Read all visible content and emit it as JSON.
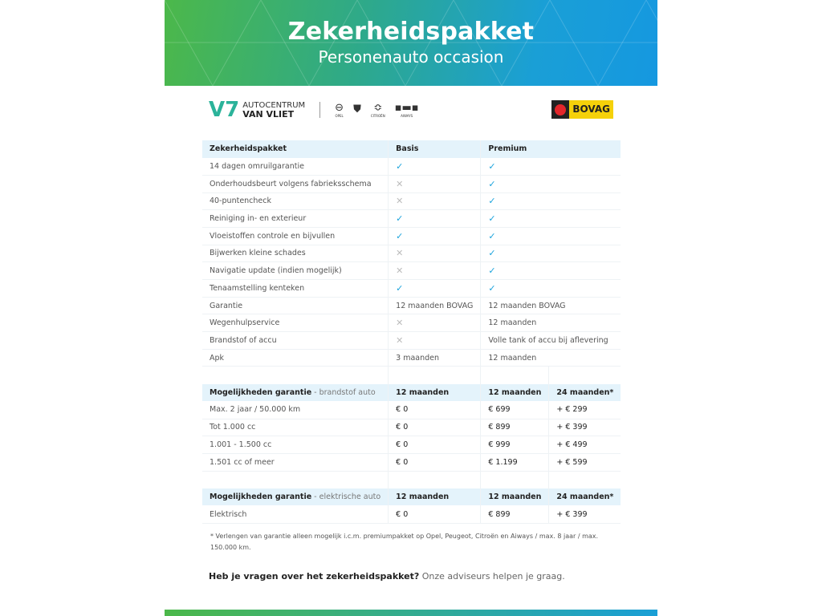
{
  "header": {
    "title": "Zekerheidspakket",
    "subtitle": "Personenauto occasion"
  },
  "logos": {
    "dealer_line1": "AUTOCENTRUM",
    "dealer_line2": "VAN VLIET",
    "brands": [
      "OPEL",
      "PEUGEOT",
      "CITROËN",
      "AIWAYS"
    ],
    "bovag": "BOVAG"
  },
  "table1": {
    "headers": [
      "Zekerheidspakket",
      "Basis",
      "Premium"
    ],
    "rows": [
      [
        "14 dagen omruilgarantie",
        "check",
        "check"
      ],
      [
        "Onderhoudsbeurt volgens fabrieksschema",
        "cross",
        "check"
      ],
      [
        "40-puntencheck",
        "cross",
        "check"
      ],
      [
        "Reiniging in- en exterieur",
        "check",
        "check"
      ],
      [
        "Vloeistoffen controle en bijvullen",
        "check",
        "check"
      ],
      [
        "Bijwerken kleine schades",
        "cross",
        "check"
      ],
      [
        "Navigatie update (indien mogelijk)",
        "cross",
        "check"
      ],
      [
        "Tenaamstelling kenteken",
        "check",
        "check"
      ],
      [
        "Garantie",
        "12 maanden BOVAG",
        "12 maanden BOVAG"
      ],
      [
        "Wegenhulpservice",
        "cross",
        "12 maanden"
      ],
      [
        "Brandstof of accu",
        "cross",
        "Volle tank of accu bij aflevering"
      ],
      [
        "Apk",
        "3 maanden",
        "12 maanden"
      ]
    ]
  },
  "table2": {
    "title": "Mogelijkheden garantie",
    "subtitle": " - brandstof auto",
    "headers": [
      "12 maanden",
      "12 maanden",
      "24 maanden*"
    ],
    "rows": [
      [
        "Max. 2 jaar / 50.000 km",
        "€ 0",
        "€ 699",
        "+ € 299"
      ],
      [
        "Tot 1.000 cc",
        "€ 0",
        "€ 899",
        "+ € 399"
      ],
      [
        "1.001 - 1.500 cc",
        "€ 0",
        "€ 999",
        "+ € 499"
      ],
      [
        "1.501 cc of meer",
        "€ 0",
        "€ 1.199",
        "+ € 599"
      ]
    ]
  },
  "table3": {
    "title": "Mogelijkheden garantie",
    "subtitle": " - elektrische auto",
    "headers": [
      "12 maanden",
      "12 maanden",
      "24 maanden*"
    ],
    "rows": [
      [
        "Elektrisch",
        "€ 0",
        "€ 899",
        "+ € 399"
      ]
    ]
  },
  "footnote": "* Verlengen van garantie alleen mogelijk i.c.m. premiumpakket op Opel, Peugeot, Citroën en Aiways / max. 8 jaar / max. 150.000 km.",
  "question": {
    "bold": "Heb je vragen over het zekerheidspakket?",
    "text": " Onze adviseurs helpen je graag."
  },
  "colors": {
    "accent": "#1aa3dc",
    "green": "#4cb84a",
    "header_row": "#e4f3fb"
  }
}
